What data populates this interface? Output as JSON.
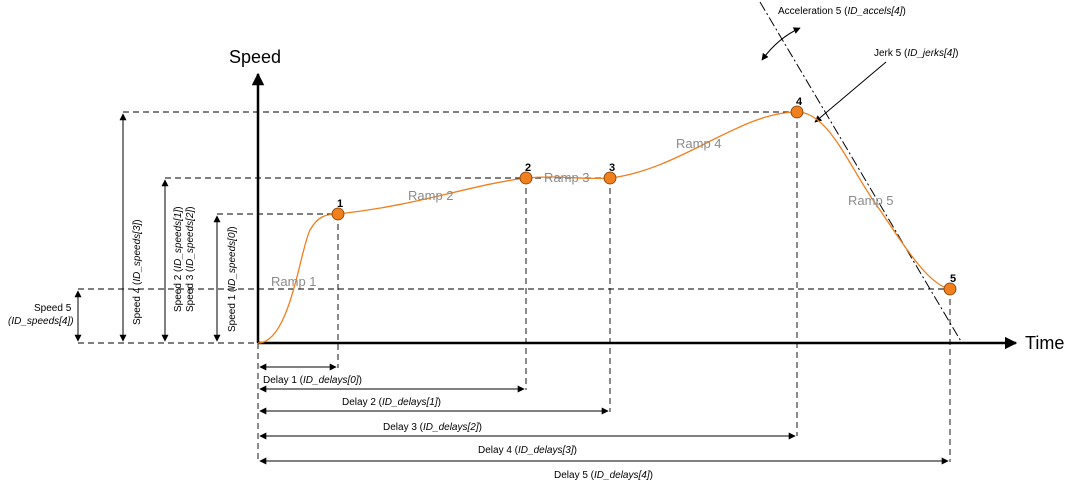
{
  "axes": {
    "y_title": "Speed",
    "x_title": "Time"
  },
  "points": [
    "1",
    "2",
    "3",
    "4",
    "5"
  ],
  "ramps": [
    "Ramp 1",
    "Ramp 2",
    "Ramp 3",
    "Ramp 4",
    "Ramp 5"
  ],
  "speeds": [
    {
      "prefix": "Speed 1 (",
      "param": "ID_speeds[0]",
      "suffix": ")"
    },
    {
      "prefix": "Speed 2 (",
      "param": "ID_speeds[1]",
      "suffix": ")"
    },
    {
      "prefix": "Speed 3 (",
      "param": "ID_speeds[2]",
      "suffix": ")"
    },
    {
      "prefix": "Speed 4 (",
      "param": "ID_speeds[3]",
      "suffix": ")"
    },
    {
      "prefix": "Speed 5",
      "param": "(ID_speeds[4])",
      "suffix": ""
    }
  ],
  "delays": [
    {
      "prefix": "Delay 1 (",
      "param": "ID_delays[0]",
      "suffix": ")"
    },
    {
      "prefix": "Delay 2 (",
      "param": "ID_delays[1]",
      "suffix": ")"
    },
    {
      "prefix": "Delay 3 (",
      "param": "ID_delays[2]",
      "suffix": ")"
    },
    {
      "prefix": "Delay 4 (",
      "param": "ID_delays[3]",
      "suffix": ")"
    },
    {
      "prefix": "Delay 5 (",
      "param": "ID_delays[4]",
      "suffix": ")"
    }
  ],
  "annotations": {
    "accel": {
      "prefix": "Acceleration 5 (",
      "param": "ID_accels[4]",
      "suffix": ")"
    },
    "jerk": {
      "prefix": "Jerk 5 (",
      "param": "ID_jerks[4]",
      "suffix": ")"
    }
  },
  "colors": {
    "curve": "#f07f1e",
    "ramp_text": "#8c8c8c",
    "axis": "#000000"
  }
}
